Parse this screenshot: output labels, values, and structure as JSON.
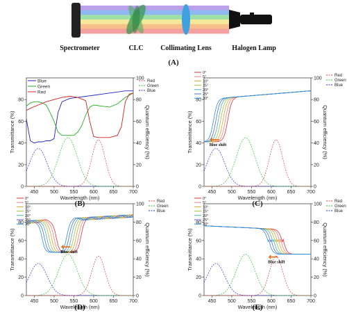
{
  "diagram": {
    "labels": {
      "spectrometer": "Spectrometer",
      "clc": "CLC",
      "lens": "Collimating Lens",
      "lamp": "Halogen Lamp",
      "panel": "(A)"
    },
    "colors": {
      "beam": [
        "#b9a0e8",
        "#8fb8f0",
        "#9fe0a8",
        "#f4e89a",
        "#f7c08a",
        "#f4a0a0"
      ],
      "lens": "#3fa0e0",
      "clc": "#3a9a50",
      "lamp": "#111111"
    }
  },
  "chart_data": [
    {
      "panel": "(B)",
      "type": "line",
      "xlabel": "Wavelength (nm)",
      "ylabel": "Transmittance (%)",
      "y2label": "Quantum efficiency (%)",
      "xlim": [
        430,
        700
      ],
      "ylim": [
        0,
        100
      ],
      "xticks": [
        450,
        500,
        550,
        600,
        650,
        700
      ],
      "yticks": [
        0,
        20,
        40,
        60,
        80
      ],
      "y2ticks": [
        0,
        20,
        40,
        60,
        80,
        100
      ],
      "legend": "top-left",
      "series": [
        {
          "name": "Blue",
          "color": "#2020c0",
          "axis": "left",
          "style": "solid",
          "x": [
            430,
            440,
            450,
            460,
            470,
            480,
            490,
            500,
            510,
            520,
            540,
            560,
            580,
            600,
            620,
            640,
            660,
            680,
            700
          ],
          "y": [
            62,
            42,
            40,
            41,
            41,
            42,
            42,
            44,
            68,
            78,
            81,
            82,
            83,
            84,
            85,
            86,
            87,
            88,
            88
          ]
        },
        {
          "name": "Green",
          "color": "#20b020",
          "axis": "left",
          "style": "solid",
          "x": [
            430,
            440,
            450,
            460,
            470,
            480,
            490,
            500,
            510,
            520,
            530,
            540,
            550,
            560,
            570,
            580,
            590,
            600,
            620,
            640,
            660,
            680,
            700
          ],
          "y": [
            74,
            77,
            78,
            78,
            77,
            75,
            68,
            60,
            50,
            47,
            47,
            47,
            47,
            50,
            56,
            66,
            73,
            75,
            74,
            73,
            76,
            82,
            86
          ]
        },
        {
          "name": "Red",
          "color": "#d02020",
          "axis": "left",
          "style": "solid",
          "x": [
            430,
            440,
            460,
            480,
            500,
            520,
            540,
            560,
            580,
            590,
            600,
            610,
            620,
            640,
            660,
            670,
            680,
            690,
            700
          ],
          "y": [
            70,
            72,
            75,
            78,
            80,
            82,
            83,
            82,
            79,
            60,
            46,
            45,
            45,
            45,
            47,
            55,
            78,
            85,
            86
          ]
        }
      ],
      "qe_series": [
        {
          "name": "Red",
          "color": "#e04040",
          "axis": "right",
          "style": "dashed"
        },
        {
          "name": "Green",
          "color": "#30c030",
          "axis": "right",
          "style": "dashed"
        },
        {
          "name": "Blue",
          "color": "#2a2ad0",
          "axis": "right",
          "style": "dashed"
        }
      ]
    },
    {
      "panel": "(C)",
      "type": "line",
      "xlabel": "Wavelength (nm)",
      "ylabel": "Transmittance (%)",
      "y2label": "Quantum efficiency (%)",
      "xlim": [
        430,
        700
      ],
      "ylim": [
        0,
        100
      ],
      "xticks": [
        450,
        500,
        550,
        600,
        650,
        700
      ],
      "yticks": [
        0,
        20,
        40,
        60,
        80
      ],
      "y2ticks": [
        0,
        20,
        40,
        60,
        80,
        100
      ],
      "legend": "top-left",
      "annotation": "Blue shift",
      "angles": [
        "0°",
        "5°",
        "10°",
        "15°",
        "20°",
        "25°",
        "30°"
      ],
      "edge": 490,
      "edge_step": -6,
      "floor": 41,
      "low_side": "left"
    },
    {
      "panel": "(D)",
      "type": "line",
      "xlabel": "Wavelength (nm)",
      "ylabel": "Transmittance (%)",
      "y2label": "Quantum efficiency (%)",
      "xlim": [
        430,
        700
      ],
      "ylim": [
        0,
        100
      ],
      "xticks": [
        450,
        500,
        550,
        600,
        650,
        700
      ],
      "yticks": [
        0,
        20,
        40,
        60,
        80
      ],
      "y2ticks": [
        0,
        20,
        40,
        60,
        80,
        100
      ],
      "legend": "top-left",
      "annotation": "Blue shift",
      "angles": [
        "0°",
        "5°",
        "10°",
        "15°",
        "20°",
        "25°",
        "30°"
      ],
      "band": [
        505,
        568
      ],
      "edge_step": -6,
      "floor": 47
    },
    {
      "panel": "(E)",
      "type": "line",
      "xlabel": "Wavelength (nm)",
      "ylabel": "Transmittance (%)",
      "y2label": "Quantum efficiency (%)",
      "xlim": [
        430,
        700
      ],
      "ylim": [
        0,
        100
      ],
      "xticks": [
        450,
        500,
        550,
        600,
        650,
        700
      ],
      "yticks": [
        0,
        20,
        40,
        60,
        80
      ],
      "y2ticks": [
        0,
        20,
        40,
        60,
        80,
        100
      ],
      "legend": "top-left",
      "annotation": "Blue shift",
      "angles": [
        "0°",
        "5°",
        "10°",
        "15°",
        "20°",
        "25°",
        "30°"
      ],
      "edge": 628,
      "edge_step": -6,
      "floor": 45,
      "low_side": "right"
    }
  ],
  "angle_colors": [
    "#e03030",
    "#f08080",
    "#e0a030",
    "#a0c040",
    "#40b0b0",
    "#6060d0",
    "#2090e0"
  ],
  "qe_curves": {
    "blue": {
      "center": 460,
      "width": 40,
      "peak": 35,
      "color": "#2a2ad0"
    },
    "green": {
      "center": 535,
      "width": 42,
      "peak": 45,
      "color": "#30c030"
    },
    "red": {
      "center": 612,
      "width": 30,
      "peak": 43,
      "color": "#e04040"
    }
  }
}
